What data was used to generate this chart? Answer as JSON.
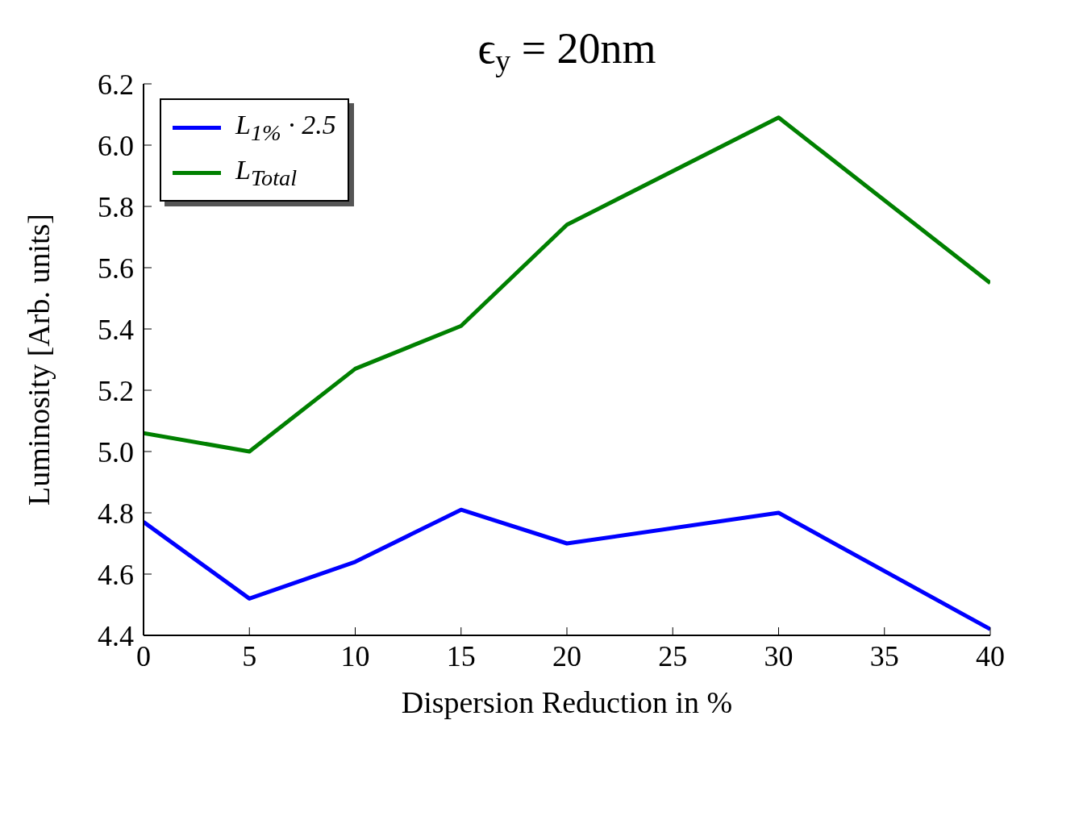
{
  "chart_data": {
    "type": "line",
    "title": "ϵ$_{y}$ = 20nm",
    "xlabel": "Dispersion Reduction in %",
    "ylabel": "Luminosity [Arb. units]",
    "x": [
      0,
      5,
      10,
      15,
      20,
      30,
      40
    ],
    "series": [
      {
        "name": "L$_{1%}$ · 2.5",
        "color": "#0000ff",
        "values": [
          4.77,
          4.52,
          4.64,
          4.81,
          4.7,
          4.8,
          4.42
        ]
      },
      {
        "name": "L$_{Total}$",
        "color": "#008000",
        "values": [
          5.06,
          5.0,
          5.27,
          5.41,
          5.74,
          6.09,
          5.55
        ]
      }
    ],
    "xlim": [
      0,
      40
    ],
    "xticks": [
      0,
      5,
      10,
      15,
      20,
      25,
      30,
      35,
      40
    ],
    "ylim": [
      4.4,
      6.2
    ],
    "yticks": [
      4.4,
      4.6,
      4.8,
      {
        "value": 5,
        "label": "5.0"
      },
      5.2,
      5.4,
      5.6,
      5.8,
      {
        "value": 6,
        "label": "6.0"
      },
      6.2
    ],
    "grid": false,
    "legend": "top left",
    "marker": "none",
    "line_style": "solid"
  }
}
